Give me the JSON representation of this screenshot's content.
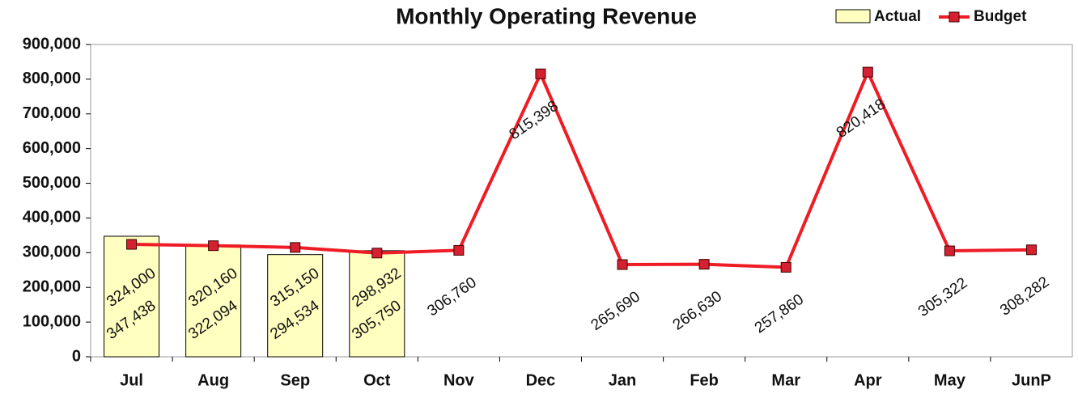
{
  "chart_data": {
    "type": "bar-line",
    "title": "Monthly Operating Revenue",
    "categories": [
      "Jul",
      "Aug",
      "Sep",
      "Oct",
      "Nov",
      "Dec",
      "Jan",
      "Feb",
      "Mar",
      "Apr",
      "May",
      "JunP"
    ],
    "series": [
      {
        "name": "Actual",
        "type": "bar",
        "color": "#ffffc0",
        "values": [
          347438,
          322094,
          294534,
          305750,
          null,
          null,
          null,
          null,
          null,
          null,
          null,
          null
        ],
        "value_labels": [
          "347,438",
          "322,094",
          "294,534",
          "305,750",
          null,
          null,
          null,
          null,
          null,
          null,
          null,
          null
        ]
      },
      {
        "name": "Budget",
        "type": "line",
        "color": "#ee1c24",
        "values": [
          324000,
          320160,
          315150,
          298932,
          306760,
          815398,
          265690,
          266630,
          257860,
          820418,
          305322,
          308282
        ],
        "value_labels": [
          "324,000",
          "320,160",
          "315,150",
          "298,932",
          "306,760",
          "815,398",
          "265,690",
          "266,630",
          "257,860",
          "820,418",
          "305,322",
          "308,282"
        ]
      }
    ],
    "ylim": [
      0,
      900000
    ],
    "yticks": [
      0,
      {
        "value": 100000,
        "label": "100,000"
      },
      {
        "value": 200000,
        "label": "200,000"
      },
      {
        "value": 300000,
        "label": "300,000"
      },
      {
        "value": 400000,
        "label": "400,000"
      },
      {
        "value": 500000,
        "label": "500,000"
      },
      {
        "value": 600000,
        "label": "600,000"
      },
      {
        "value": 700000,
        "label": "700,000"
      },
      {
        "value": 800000,
        "label": "800,000"
      },
      {
        "value": 900000,
        "label": "900,000"
      }
    ],
    "legend": "top-right"
  }
}
